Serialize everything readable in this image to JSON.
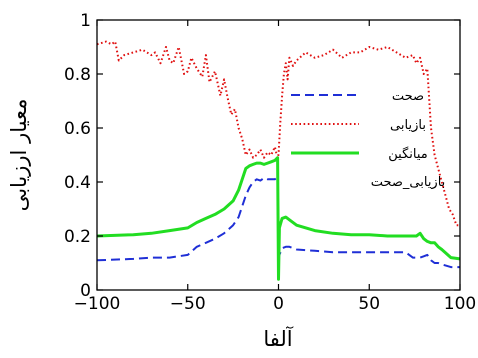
{
  "chart_data": {
    "type": "line",
    "title": "",
    "xlabel": "آلفا",
    "ylabel": "معیار ارزیابی",
    "xlim": [
      -100,
      100
    ],
    "ylim": [
      0,
      1
    ],
    "xticks": [
      "−100",
      "−50",
      "0",
      "50",
      "100"
    ],
    "yticks": [
      "0",
      "0.2",
      "0.4",
      "0.6",
      "0.8",
      "1"
    ],
    "legend_position": "right",
    "grid": false,
    "series": [
      {
        "name": "صحت",
        "color": "#1f2fd6",
        "style": "dashed",
        "x": [
          -100,
          -80,
          -70,
          -60,
          -50,
          -45,
          -40,
          -35,
          -30,
          -25,
          -22,
          -20,
          -18,
          -16,
          -14,
          -12,
          -10,
          -8,
          -6,
          -4,
          -2,
          -0.5,
          0,
          0.5,
          2,
          4,
          6,
          10,
          20,
          30,
          40,
          50,
          60,
          70,
          74,
          76,
          78,
          80,
          82,
          84,
          86,
          88,
          90,
          95,
          100
        ],
        "y": [
          0.11,
          0.115,
          0.12,
          0.12,
          0.13,
          0.16,
          0.175,
          0.19,
          0.21,
          0.24,
          0.27,
          0.31,
          0.35,
          0.38,
          0.4,
          0.41,
          0.405,
          0.415,
          0.41,
          0.41,
          0.41,
          0.42,
          0.2,
          0.13,
          0.155,
          0.16,
          0.16,
          0.15,
          0.145,
          0.14,
          0.14,
          0.14,
          0.14,
          0.14,
          0.12,
          0.12,
          0.12,
          0.125,
          0.13,
          0.11,
          0.1,
          0.1,
          0.095,
          0.085,
          0.085
        ]
      },
      {
        "name": "بازیابی",
        "color": "#e01010",
        "style": "dotted",
        "x": [
          -100,
          -95,
          -92,
          -90,
          -88,
          -85,
          -80,
          -75,
          -70,
          -68,
          -65,
          -62,
          -60,
          -58,
          -55,
          -52,
          -50,
          -48,
          -45,
          -42,
          -40,
          -38,
          -35,
          -32,
          -30,
          -28,
          -26,
          -24,
          -22,
          -20,
          -18,
          -16,
          -14,
          -12,
          -10,
          -8,
          -6,
          -4,
          -2,
          -1,
          0,
          1,
          2,
          3,
          4,
          5,
          6,
          8,
          10,
          15,
          20,
          25,
          30,
          35,
          40,
          45,
          50,
          55,
          60,
          65,
          70,
          74,
          76,
          78,
          80,
          82,
          84,
          86,
          88,
          90,
          92,
          94,
          96,
          98,
          100
        ],
        "y": [
          0.91,
          0.92,
          0.91,
          0.92,
          0.85,
          0.87,
          0.88,
          0.89,
          0.87,
          0.88,
          0.84,
          0.9,
          0.85,
          0.84,
          0.9,
          0.8,
          0.81,
          0.86,
          0.82,
          0.79,
          0.87,
          0.77,
          0.81,
          0.72,
          0.78,
          0.71,
          0.65,
          0.67,
          0.6,
          0.56,
          0.5,
          0.52,
          0.49,
          0.5,
          0.52,
          0.49,
          0.51,
          0.5,
          0.53,
          0.5,
          0.5,
          0.62,
          0.72,
          0.8,
          0.84,
          0.78,
          0.86,
          0.83,
          0.85,
          0.88,
          0.86,
          0.87,
          0.89,
          0.86,
          0.88,
          0.88,
          0.9,
          0.89,
          0.9,
          0.88,
          0.86,
          0.87,
          0.84,
          0.86,
          0.8,
          0.82,
          0.6,
          0.5,
          0.45,
          0.4,
          0.35,
          0.3,
          0.28,
          0.24,
          0.24
        ]
      },
      {
        "name": "میانگین",
        "color": "#22dd22",
        "style": "solid",
        "x": [
          -100,
          -80,
          -70,
          -60,
          -50,
          -45,
          -40,
          -35,
          -30,
          -25,
          -22,
          -20,
          -18,
          -16,
          -14,
          -12,
          -10,
          -8,
          -6,
          -4,
          -2,
          -0.5,
          0,
          0.5,
          2,
          4,
          6,
          10,
          20,
          30,
          40,
          50,
          60,
          70,
          76,
          78,
          80,
          82,
          84,
          86,
          88,
          90,
          95,
          100
        ],
        "y": [
          0.2,
          0.205,
          0.21,
          0.22,
          0.23,
          0.25,
          0.265,
          0.28,
          0.3,
          0.33,
          0.37,
          0.41,
          0.45,
          0.46,
          0.465,
          0.47,
          0.47,
          0.465,
          0.47,
          0.475,
          0.48,
          0.49,
          0.04,
          0.23,
          0.265,
          0.27,
          0.26,
          0.24,
          0.22,
          0.21,
          0.205,
          0.205,
          0.2,
          0.2,
          0.2,
          0.21,
          0.19,
          0.18,
          0.175,
          0.175,
          0.16,
          0.15,
          0.12,
          0.115
        ]
      },
      {
        "name": "بازیابی_صحت",
        "color": "#22dd22",
        "style": "none",
        "x": [],
        "y": []
      }
    ]
  }
}
